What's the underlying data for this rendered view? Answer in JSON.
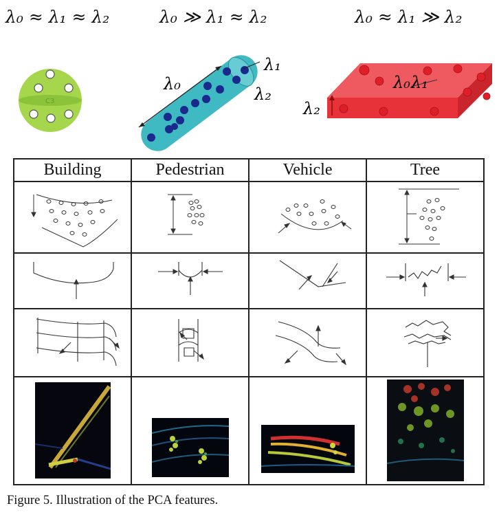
{
  "headers": {
    "isotropic": "λ₀ ≈ λ₁ ≈ λ₂",
    "linear": "λ₀ ≫ λ₁ ≈ λ₂",
    "planar": "λ₀ ≈ λ₁ ≫ λ₂"
  },
  "shape_labels": {
    "linear_l0": "λ₀",
    "linear_l1": "λ₁",
    "linear_l2": "λ₂",
    "planar_l0": "λ₀",
    "planar_l1": "λ₁",
    "planar_l2": "λ₂",
    "sphere_center": "C3"
  },
  "table": {
    "columns": [
      "Building",
      "Pedestrian",
      "Vehicle",
      "Tree"
    ]
  },
  "caption": "Figure 5.   Illustration of the PCA features.",
  "colors": {
    "sphere": "#a6d64b",
    "cylinder": "#3fb9c2",
    "box": "#e8323a",
    "dot": "#1a2a8c"
  }
}
